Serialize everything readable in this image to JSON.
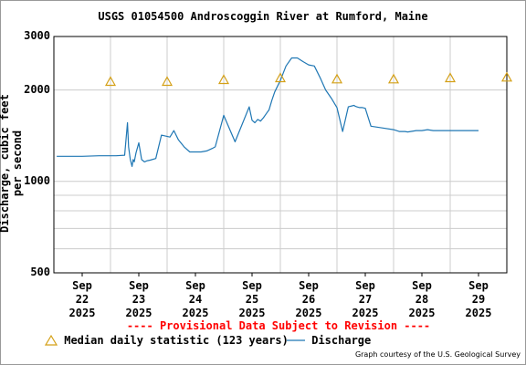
{
  "chart_data": {
    "type": "line",
    "title": "USGS 01054500 Androscoggin River at Rumford, Maine",
    "ylabel": "Discharge, cubic feet per second",
    "xlabel": "",
    "y_scale": "log",
    "ylim": [
      500,
      3000
    ],
    "y_ticks": [
      "3000",
      "2000",
      "1000",
      "500"
    ],
    "x_ticks": [
      {
        "day": "Sep",
        "date": "22",
        "year": "2025"
      },
      {
        "day": "Sep",
        "date": "23",
        "year": "2025"
      },
      {
        "day": "Sep",
        "date": "24",
        "year": "2025"
      },
      {
        "day": "Sep",
        "date": "25",
        "year": "2025"
      },
      {
        "day": "Sep",
        "date": "26",
        "year": "2025"
      },
      {
        "day": "Sep",
        "date": "27",
        "year": "2025"
      },
      {
        "day": "Sep",
        "date": "28",
        "year": "2025"
      },
      {
        "day": "Sep",
        "date": "29",
        "year": "2025"
      }
    ],
    "grid": true,
    "series": [
      {
        "name": "Discharge",
        "color": "#1f77b4",
        "x_unit": "days since Sep 22 2025 00:00",
        "x": [
          -0.45,
          0,
          0.3,
          0.6,
          0.75,
          0.8,
          0.82,
          0.85,
          0.88,
          0.9,
          0.92,
          0.95,
          1.0,
          1.05,
          1.1,
          1.15,
          1.2,
          1.3,
          1.4,
          1.55,
          1.62,
          1.7,
          1.8,
          1.9,
          2.0,
          2.1,
          2.2,
          2.3,
          2.35,
          2.5,
          2.7,
          2.95,
          3.0,
          3.05,
          3.1,
          3.15,
          3.2,
          3.25,
          3.3,
          3.35,
          3.4,
          3.5,
          3.6,
          3.7,
          3.8,
          3.9,
          4.0,
          4.1,
          4.2,
          4.3,
          4.4,
          4.5,
          4.6,
          4.7,
          4.8,
          4.82,
          4.85,
          4.9,
          4.95,
          5.0,
          5.1,
          5.3,
          5.5,
          5.6,
          5.7,
          5.75,
          5.8,
          5.9,
          6.0,
          6.05,
          6.1,
          6.15,
          6.2,
          6.4,
          6.6,
          6.8,
          7.0
        ],
        "values": [
          1210,
          1210,
          1215,
          1215,
          1220,
          1560,
          1300,
          1180,
          1120,
          1180,
          1160,
          1240,
          1340,
          1180,
          1160,
          1170,
          1175,
          1190,
          1420,
          1400,
          1470,
          1370,
          1300,
          1250,
          1250,
          1250,
          1260,
          1285,
          1300,
          1650,
          1350,
          1760,
          1590,
          1560,
          1600,
          1580,
          1620,
          1670,
          1720,
          1850,
          1970,
          2150,
          2400,
          2550,
          2550,
          2480,
          2420,
          2400,
          2200,
          2000,
          1880,
          1750,
          1460,
          1760,
          1780,
          1770,
          1760,
          1750,
          1750,
          1740,
          1520,
          1500,
          1480,
          1460,
          1460,
          1455,
          1460,
          1470,
          1470,
          1475,
          1480,
          1475,
          1470,
          1470,
          1470,
          1470,
          1470
        ],
        "values_note": ""
      },
      {
        "name": "Median daily statistic (123 years)",
        "color": "#d4a017",
        "marker": "triangle",
        "x": [
          0.5,
          1.5,
          2.5,
          3.5,
          4.5,
          5.5,
          6.5,
          7.5
        ],
        "values": [
          2130,
          2130,
          2160,
          2190,
          2170,
          2170,
          2190,
          2200
        ]
      }
    ]
  },
  "legend": {
    "median_label": "Median daily statistic (123 years)",
    "discharge_label": "Discharge"
  },
  "provisional": "---- Provisional Data Subject to Revision ----",
  "credit": "Graph courtesy of the U.S. Geological Survey"
}
